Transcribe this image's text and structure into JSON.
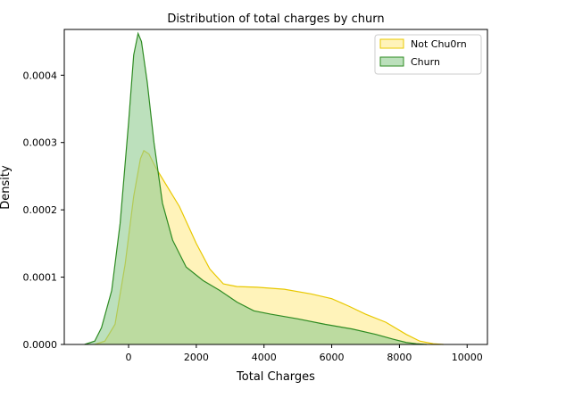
{
  "chart_data": {
    "type": "area",
    "title": "Distribution of total charges by churn",
    "xlabel": "Total Charges",
    "ylabel": "Density",
    "xlim": [
      -1900,
      10600
    ],
    "ylim": [
      0,
      0.000468
    ],
    "xticks": [
      0,
      2000,
      4000,
      6000,
      8000,
      10000
    ],
    "xtick_labels": [
      "0",
      "2000",
      "4000",
      "6000",
      "8000",
      "10000"
    ],
    "yticks": [
      0,
      0.0001,
      0.0002,
      0.0003,
      0.0004
    ],
    "ytick_labels": [
      "0.0000",
      "0.0001",
      "0.0002",
      "0.0003",
      "0.0004"
    ],
    "grid": false,
    "legend_position": "top-right",
    "series": [
      {
        "name": "Not Chu0rn",
        "fill": "#fff2b2",
        "stroke": "#e8c800",
        "x": [
          -1000,
          -700,
          -400,
          -100,
          150,
          350,
          450,
          600,
          800,
          1100,
          1500,
          2000,
          2400,
          2800,
          3200,
          3800,
          4600,
          5400,
          6000,
          6500,
          7000,
          7600,
          8200,
          8600,
          9000,
          9300
        ],
        "y": [
          0,
          5e-06,
          3e-05,
          0.00012,
          0.00022,
          0.000276,
          0.000288,
          0.000283,
          0.000263,
          0.000238,
          0.000205,
          0.00015,
          0.000112,
          9e-05,
          8.6e-05,
          8.5e-05,
          8.2e-05,
          7.5e-05,
          6.8e-05,
          5.7e-05,
          4.5e-05,
          3.3e-05,
          1.5e-05,
          5e-06,
          1e-06,
          0
        ]
      },
      {
        "name": "Churn",
        "fill": "#8fcc8f",
        "stroke": "#2e8b22",
        "x": [
          -1300,
          -1000,
          -800,
          -500,
          -250,
          0,
          150,
          280,
          380,
          550,
          750,
          1000,
          1300,
          1700,
          2200,
          2700,
          3200,
          3700,
          4200,
          5000,
          5800,
          6600,
          7300,
          7800,
          8200,
          8500,
          8800
        ],
        "y": [
          0,
          5e-06,
          2.5e-05,
          8e-05,
          0.00018,
          0.00033,
          0.00043,
          0.000462,
          0.00045,
          0.00039,
          0.0003,
          0.00021,
          0.000155,
          0.000115,
          9.5e-05,
          8e-05,
          6.3e-05,
          5e-05,
          4.5e-05,
          3.8e-05,
          3e-05,
          2.3e-05,
          1.5e-05,
          8e-06,
          3e-06,
          1e-06,
          0
        ]
      }
    ]
  }
}
